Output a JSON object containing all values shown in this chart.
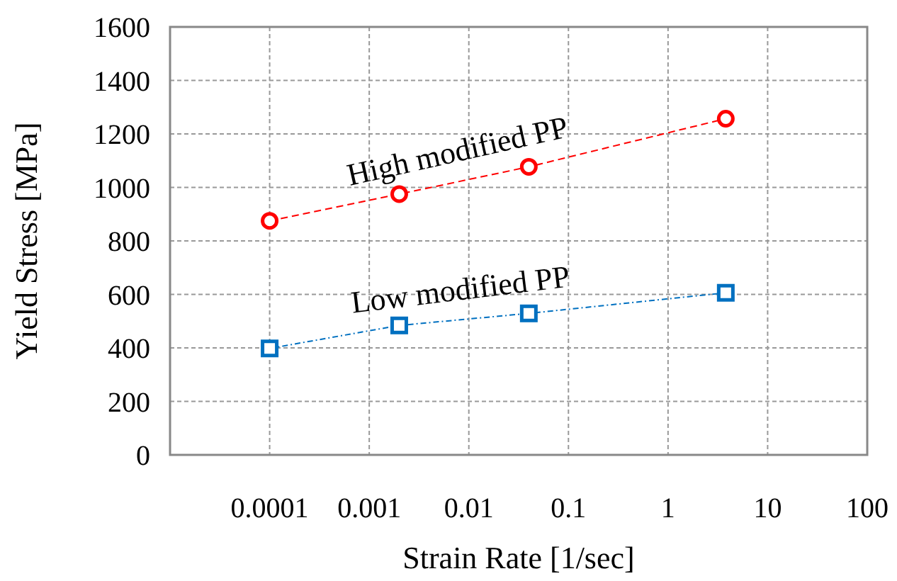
{
  "chart_data": {
    "type": "line",
    "xlabel": "Strain Rate [1/sec]",
    "ylabel": "Yield Stress [MPa]",
    "log": "x",
    "grid": true,
    "xlim": [
      1e-05,
      100
    ],
    "xticks": [
      0.0001,
      0.001,
      0.01,
      0.1,
      1,
      10,
      100
    ],
    "ylim": [
      0,
      1600
    ],
    "yticks": [
      0,
      200,
      400,
      600,
      800,
      1000,
      1200,
      1400,
      1600
    ],
    "series": [
      {
        "name": "High modified PP",
        "color": "#ff0000",
        "marker": "circle",
        "line_style": "dashed",
        "x": [
          0.0001,
          0.002,
          0.04,
          3.8
        ],
        "values": [
          875,
          975,
          1077,
          1257
        ]
      },
      {
        "name": "Low modified PP",
        "color": "#0070c0",
        "marker": "square",
        "line_style": "dotted",
        "x": [
          0.0001,
          0.002,
          0.04,
          3.8
        ],
        "values": [
          398,
          484,
          529,
          606
        ]
      }
    ]
  }
}
